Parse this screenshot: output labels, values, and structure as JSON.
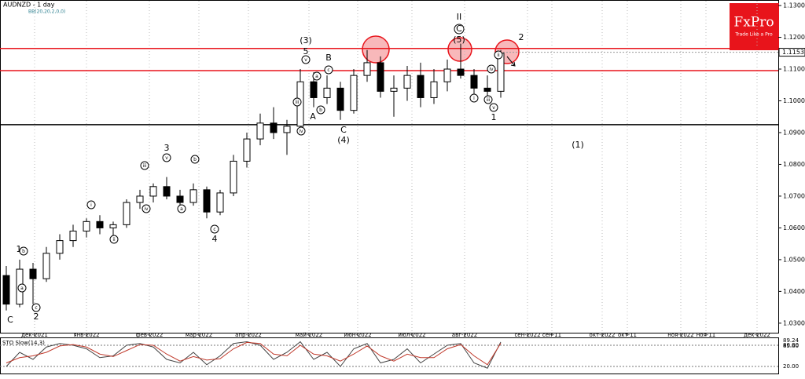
{
  "chart_data": [
    {
      "type": "candlestick",
      "title": "AUDNZD - 1 day",
      "subtitle": "BB(20,20,2,0,0)",
      "brand": "FxPro",
      "brand_tagline": "Trade Like a Pro",
      "x_labels": [
        "дек-2021",
        "янв-2022",
        "фев-2022",
        "мар-2022",
        "апр-2022",
        "май-2022",
        "июн-2022",
        "июл-2022",
        "авг-2022",
        "сен-2022",
        "сен-11",
        "окт-2022",
        "окт-11",
        "ноя-2022",
        "ноя-11",
        "дек-2022"
      ],
      "open": [
        1.045,
        1.036,
        1.047,
        1.044,
        1.052,
        1.056,
        1.059,
        1.062,
        1.06,
        1.061,
        1.068,
        1.07,
        1.073,
        1.07,
        1.068,
        1.072,
        1.065,
        1.071,
        1.081,
        1.088,
        1.093,
        1.09,
        1.092,
        1.106,
        1.101,
        1.104,
        1.097,
        1.108,
        1.112,
        1.103,
        1.104,
        1.108,
        1.101,
        1.106,
        1.11,
        1.108,
        1.104,
        1.103
      ],
      "high": [
        1.048,
        1.05,
        1.049,
        1.054,
        1.058,
        1.061,
        1.063,
        1.064,
        1.062,
        1.069,
        1.072,
        1.074,
        1.076,
        1.072,
        1.074,
        1.073,
        1.072,
        1.083,
        1.09,
        1.096,
        1.098,
        1.094,
        1.11,
        1.109,
        1.108,
        1.106,
        1.11,
        1.116,
        1.114,
        1.108,
        1.111,
        1.112,
        1.11,
        1.113,
        1.118,
        1.11,
        1.108,
        1.116
      ],
      "low": [
        1.034,
        1.035,
        1.036,
        1.043,
        1.05,
        1.054,
        1.057,
        1.058,
        1.056,
        1.06,
        1.066,
        1.068,
        1.069,
        1.066,
        1.067,
        1.063,
        1.064,
        1.07,
        1.079,
        1.086,
        1.088,
        1.083,
        1.091,
        1.098,
        1.099,
        1.094,
        1.096,
        1.106,
        1.101,
        1.095,
        1.1,
        1.098,
        1.099,
        1.103,
        1.107,
        1.101,
        1.1,
        1.101
      ],
      "close": [
        1.036,
        1.047,
        1.044,
        1.052,
        1.056,
        1.059,
        1.062,
        1.06,
        1.061,
        1.068,
        1.07,
        1.073,
        1.07,
        1.068,
        1.072,
        1.065,
        1.071,
        1.081,
        1.088,
        1.093,
        1.09,
        1.092,
        1.106,
        1.101,
        1.104,
        1.097,
        1.108,
        1.112,
        1.103,
        1.104,
        1.108,
        1.101,
        1.106,
        1.11,
        1.108,
        1.104,
        1.103,
        1.115
      ],
      "last_price": {
        "value": 1.1153,
        "label": "1.1153"
      },
      "ylim": [
        1.027,
        1.1315
      ],
      "yticks": [
        {
          "value": 1.13,
          "label": "1.1300"
        },
        {
          "value": 1.12,
          "label": "1.1200"
        },
        {
          "value": 1.11,
          "label": "1.1100"
        },
        {
          "value": 1.1,
          "label": "1.1000"
        },
        {
          "value": 1.09,
          "label": "1.0900"
        },
        {
          "value": 1.08,
          "label": "1.0800"
        },
        {
          "value": 1.07,
          "label": "1.0700"
        },
        {
          "value": 1.06,
          "label": "1.0600"
        },
        {
          "value": 1.05,
          "label": "1.0500"
        },
        {
          "value": 1.04,
          "label": "1.0400"
        },
        {
          "value": 1.03,
          "label": "1.0300"
        }
      ],
      "hlines": [
        {
          "value": 1.1165,
          "color": "#e8141b"
        },
        {
          "value": 1.1095,
          "color": "#e8141b"
        },
        {
          "value": 1.0925,
          "color": "#000000"
        }
      ],
      "wave_labels": [
        "(3)",
        "5",
        "B",
        "A",
        "C",
        "(4)",
        "3",
        "4",
        "1",
        "2",
        "C",
        "II",
        "C",
        "(5)",
        "2",
        "1",
        "(1)"
      ],
      "circled_labels": [
        "v",
        "iii",
        "iv",
        "a",
        "b",
        "c",
        "i",
        "ii",
        "iii",
        "iv",
        "v",
        "a",
        "b",
        "c",
        "a",
        "b",
        "c",
        "i",
        "ii",
        "iii",
        "iv",
        "v"
      ]
    },
    {
      "type": "line",
      "title": "STO Slow(14,3)",
      "ylim": [
        0,
        100
      ],
      "yticks": [
        {
          "value": 80,
          "label": "80.00"
        },
        {
          "value": 20,
          "label": "20.00"
        }
      ],
      "series": [
        {
          "name": "Main",
          "color": "#444444",
          "values": [
            20,
            60,
            40,
            75,
            85,
            80,
            70,
            45,
            50,
            80,
            85,
            75,
            40,
            30,
            60,
            25,
            50,
            85,
            90,
            80,
            40,
            60,
            90,
            40,
            60,
            20,
            70,
            85,
            30,
            40,
            70,
            30,
            55,
            80,
            85,
            30,
            15,
            89.24
          ],
          "value_labels": [
            null,
            null,
            null,
            null,
            null,
            null,
            null,
            null,
            null,
            null,
            null,
            null,
            null,
            null,
            null,
            null,
            null,
            null,
            null,
            null,
            null,
            null,
            null,
            null,
            null,
            null,
            null,
            null,
            null,
            null,
            null,
            null,
            null,
            null,
            null,
            null,
            null,
            "89.24"
          ]
        },
        {
          "name": "Signal",
          "color": "#c0392b",
          "values": [
            30,
            45,
            50,
            60,
            78,
            82,
            75,
            55,
            48,
            65,
            82,
            80,
            55,
            35,
            48,
            38,
            42,
            70,
            88,
            85,
            55,
            50,
            80,
            55,
            50,
            35,
            55,
            78,
            50,
            35,
            55,
            45,
            45,
            70,
            82,
            50,
            25,
            85.6
          ],
          "value_labels": [
            null,
            null,
            null,
            null,
            null,
            null,
            null,
            null,
            null,
            null,
            null,
            null,
            null,
            null,
            null,
            null,
            null,
            null,
            null,
            null,
            null,
            null,
            null,
            null,
            null,
            null,
            null,
            null,
            null,
            null,
            null,
            null,
            null,
            null,
            null,
            null,
            null,
            "85.60"
          ]
        }
      ]
    }
  ]
}
